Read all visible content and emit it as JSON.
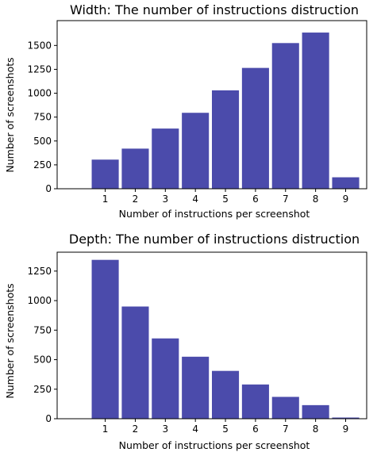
{
  "chart_data": [
    {
      "type": "bar",
      "title": "Width: The number of instructions distruction",
      "xlabel": "Number of instructions per screenshot",
      "ylabel": "Number of screenshots",
      "categories": [
        "1",
        "2",
        "3",
        "4",
        "5",
        "6",
        "7",
        "8",
        "9"
      ],
      "values": [
        305,
        420,
        630,
        795,
        1030,
        1265,
        1525,
        1635,
        120
      ],
      "ylim": [
        0,
        1760
      ],
      "yticks": [
        0,
        250,
        500,
        750,
        1000,
        1250,
        1500
      ],
      "bar_color": "#4b4bab",
      "grid": false
    },
    {
      "type": "bar",
      "title": "Depth: The number of instructions distruction",
      "xlabel": "Number of instructions per screenshot",
      "ylabel": "Number of screenshots",
      "categories": [
        "1",
        "2",
        "3",
        "4",
        "5",
        "6",
        "7",
        "8",
        "9"
      ],
      "values": [
        1345,
        950,
        680,
        525,
        405,
        290,
        185,
        115,
        10
      ],
      "ylim": [
        0,
        1410
      ],
      "yticks": [
        0,
        250,
        500,
        750,
        1000,
        1250
      ],
      "bar_color": "#4b4bab",
      "grid": false
    }
  ]
}
